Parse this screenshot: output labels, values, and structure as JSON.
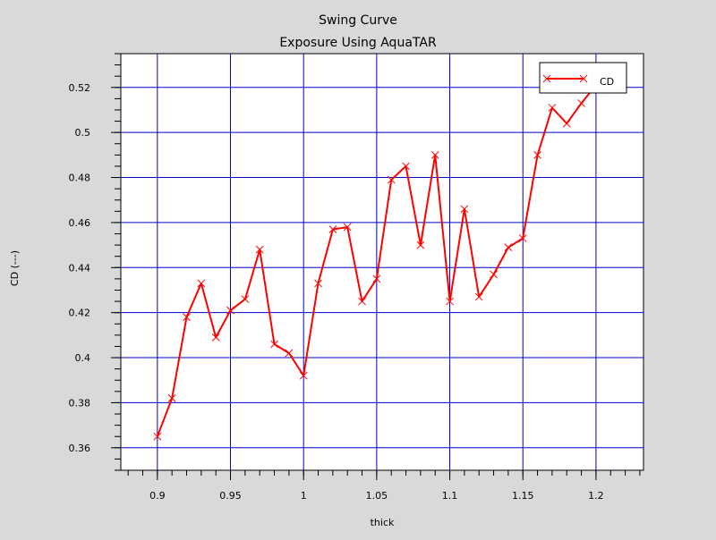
{
  "chart_data": {
    "type": "line",
    "title": "Swing Curve",
    "subtitle": "Exposure Using AquaTAR",
    "xlabel": "thick",
    "ylabel": "CD (---)",
    "xlim": [
      0.875,
      1.2325
    ],
    "ylim": [
      0.35,
      0.535
    ],
    "x_ticks": [
      0.9,
      0.95,
      1.0,
      1.05,
      1.1,
      1.15,
      1.2
    ],
    "x_tick_labels": [
      "0.9",
      "0.95",
      "1",
      "1.05",
      "1.1",
      "1.15",
      "1.2"
    ],
    "y_ticks": [
      0.36,
      0.38,
      0.4,
      0.42,
      0.44,
      0.46,
      0.48,
      0.5,
      0.52
    ],
    "y_tick_labels": [
      "0.36",
      "0.38",
      "0.4",
      "0.42",
      "0.44",
      "0.46",
      "0.48",
      "0.5",
      "0.52"
    ],
    "grid": true,
    "grid_color": "#0000cc",
    "legend_position": "top-right",
    "series": [
      {
        "name": "CD",
        "color": "#ff0000",
        "marker": "x",
        "x": [
          0.9,
          0.91,
          0.92,
          0.93,
          0.94,
          0.95,
          0.96,
          0.97,
          0.98,
          0.99,
          1.0,
          1.01,
          1.02,
          1.03,
          1.04,
          1.05,
          1.06,
          1.07,
          1.08,
          1.09,
          1.1,
          1.11,
          1.12,
          1.13,
          1.14,
          1.15,
          1.16,
          1.17,
          1.18,
          1.19,
          1.2
        ],
        "y": [
          0.365,
          0.382,
          0.418,
          0.433,
          0.409,
          0.421,
          0.426,
          0.448,
          0.406,
          0.402,
          0.392,
          0.433,
          0.457,
          0.458,
          0.425,
          0.435,
          0.479,
          0.485,
          0.45,
          0.49,
          0.425,
          0.466,
          0.427,
          0.437,
          0.449,
          0.453,
          0.49,
          0.511,
          0.504,
          0.513,
          0.521
        ]
      }
    ]
  }
}
